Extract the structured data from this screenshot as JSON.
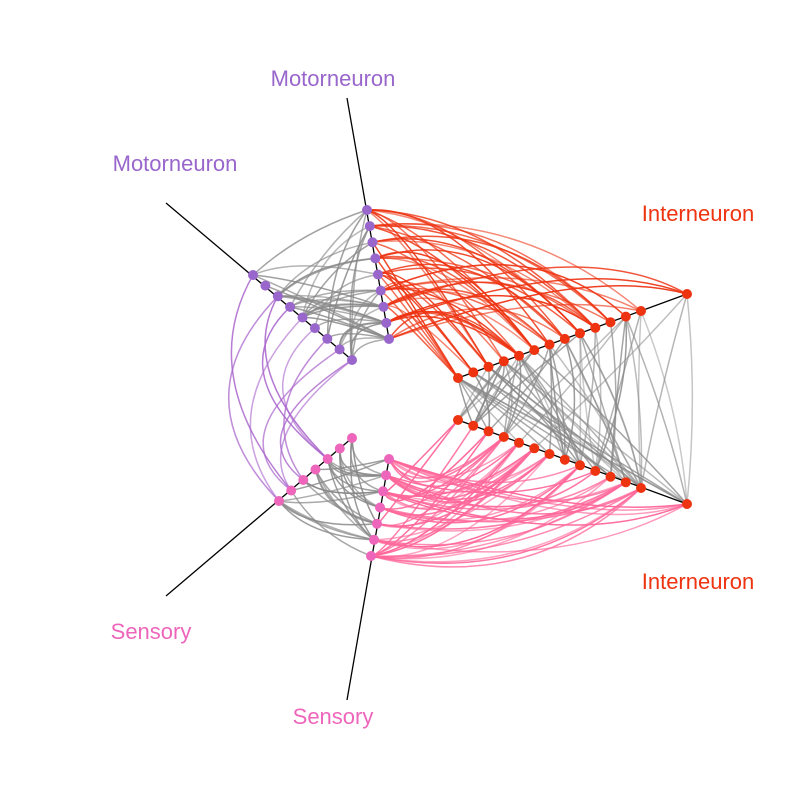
{
  "colors": {
    "motorneuron": "#9966cc",
    "interneuron": "#ee3311",
    "sensory": "#ee66bb",
    "axis": "#000000",
    "edge_gray": "#888888",
    "edge_motor_inter": "#ee3311",
    "edge_sensory_inter": "#ff6699",
    "edge_sensory_motor": "#aa66cc"
  },
  "axes": [
    {
      "key": "motor_a",
      "label": "Motorneuron",
      "group": "motorneuron"
    },
    {
      "key": "motor_b",
      "label": "Motorneuron",
      "group": "motorneuron"
    },
    {
      "key": "inter_a",
      "label": "Interneuron",
      "group": "interneuron"
    },
    {
      "key": "inter_b",
      "label": "Interneuron",
      "group": "interneuron"
    },
    {
      "key": "sens_a",
      "label": "Sensory",
      "group": "sensory"
    },
    {
      "key": "sens_b",
      "label": "Sensory",
      "group": "sensory"
    }
  ]
}
